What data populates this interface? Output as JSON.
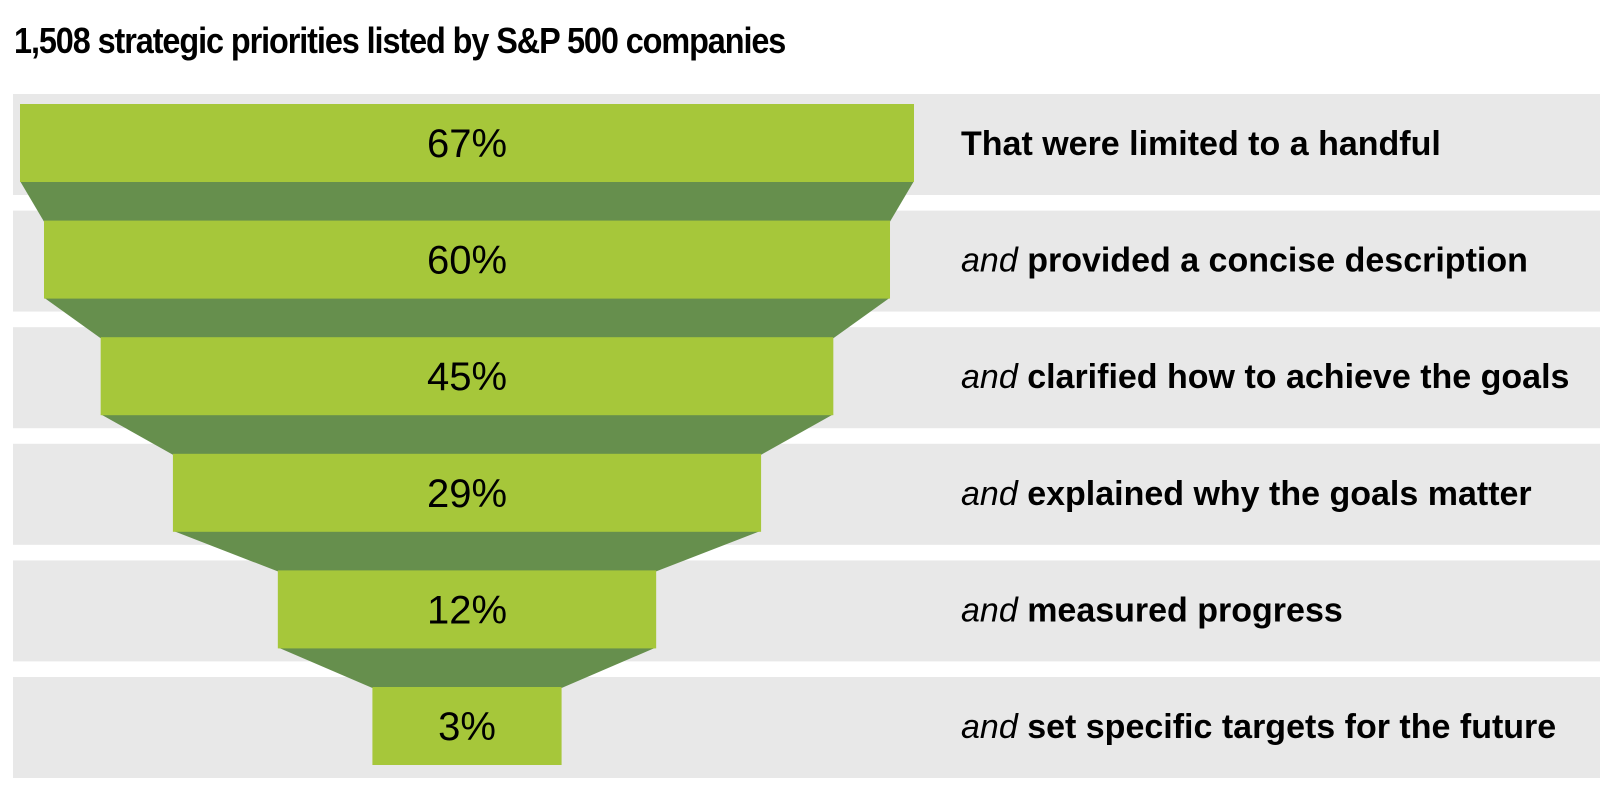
{
  "chart_data": {
    "type": "funnel",
    "title": "1,508 strategic priorities listed by S&P 500 companies",
    "categories": [
      {
        "connector": "",
        "text": "That were limited to a handful"
      },
      {
        "connector": "and",
        "text": "provided a concise description"
      },
      {
        "connector": "and",
        "text": "clarified how to achieve the goals"
      },
      {
        "connector": "and",
        "text": "explained why the goals matter"
      },
      {
        "connector": "and",
        "text": "measured progress"
      },
      {
        "connector": "and",
        "text": "set specific targets for the future"
      }
    ],
    "values": [
      67,
      60,
      45,
      29,
      12,
      3
    ],
    "value_labels": [
      "67%",
      "60%",
      "45%",
      "29%",
      "12%",
      "3%"
    ],
    "max_value": 67
  },
  "colors": {
    "bar": "#a6c73a",
    "connector": "#668f4d",
    "row_band": "#e8e8e8",
    "text": "#000000"
  }
}
